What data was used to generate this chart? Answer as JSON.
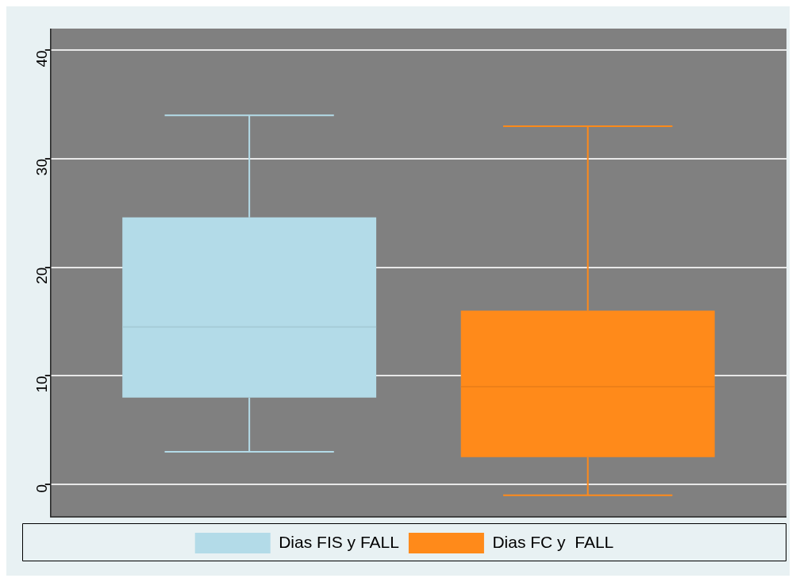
{
  "chart_data": {
    "type": "box",
    "categories": [
      null
    ],
    "series": [
      {
        "name": "Dias FIS y FALL",
        "color": "#b3dbe8",
        "boxes": [
          {
            "low": 3,
            "q1": 8,
            "median": 14.5,
            "q3": 24.6,
            "high": 34
          }
        ]
      },
      {
        "name": "Dias FC y  FALL",
        "color": "#ff8a1a",
        "boxes": [
          {
            "low": -1,
            "q1": 2.5,
            "median": 9,
            "q3": 16,
            "high": 33
          }
        ]
      }
    ],
    "ylim": [
      -3,
      42
    ],
    "yticks": [
      0,
      10,
      20,
      30,
      40
    ],
    "grid": "y",
    "legend": "bottom",
    "tick_labels": "y"
  }
}
